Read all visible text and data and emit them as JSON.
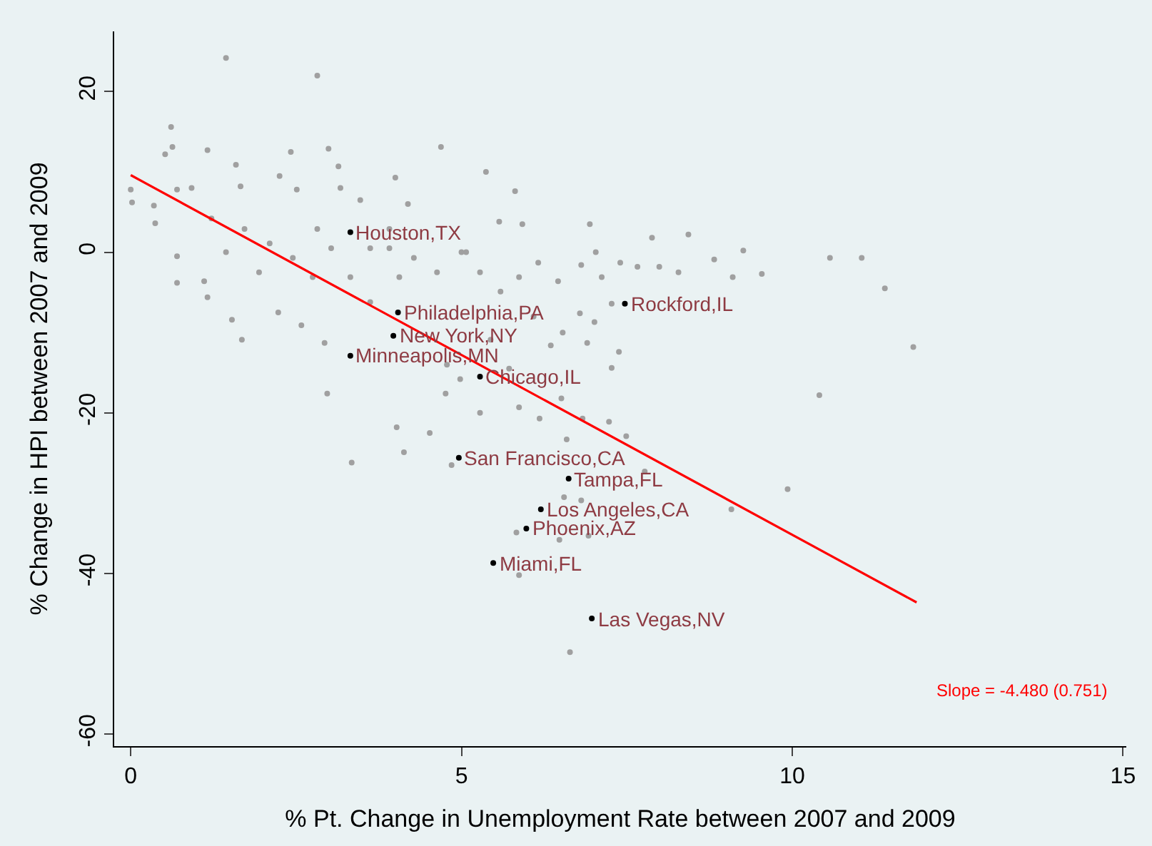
{
  "chart_data": {
    "type": "scatter",
    "xlabel": "% Pt. Change in Unemployment Rate between 2007 and 2009",
    "ylabel": "% Change in HPI between 2007 and 2009",
    "xlim": [
      -0.25,
      15.05
    ],
    "ylim": [
      -61.5,
      27.5
    ],
    "xticks": [
      0,
      5,
      10,
      15
    ],
    "yticks": [
      -60,
      -40,
      -20,
      0,
      20
    ],
    "grid": false,
    "marker": "circle",
    "series": [
      {
        "color": "#a0a0a0",
        "x": [
          1.44,
          2.82,
          0.0,
          0.02,
          0.61,
          0.63,
          0.52,
          1.16,
          1.59,
          1.66,
          2.25,
          2.42,
          2.99,
          3.14,
          3.17,
          4.0,
          4.69,
          2.51,
          0.7,
          0.92,
          0.35,
          0.37,
          0.7,
          0.7,
          1.11,
          1.16,
          1.53,
          1.68,
          2.23,
          2.58,
          2.93,
          2.97,
          4.76,
          4.98,
          1.22,
          1.44,
          1.72,
          2.1,
          1.94,
          2.45,
          2.82,
          2.75,
          3.03,
          3.32,
          3.62,
          3.62,
          3.91,
          4.06,
          4.28,
          4.63,
          4.19,
          3.47,
          3.91,
          5.0,
          4.78,
          5.37,
          5.81,
          5.57,
          5.92,
          6.94,
          7.88,
          8.43,
          9.26,
          9.54,
          9.1,
          8.82,
          8.28,
          7.99,
          7.66,
          7.4,
          7.12,
          7.03,
          6.81,
          6.46,
          6.16,
          5.87,
          5.59,
          5.28,
          5.07,
          7.27,
          7.38,
          7.27,
          6.9,
          7.01,
          6.53,
          6.35,
          6.79,
          6.09,
          10.41,
          10.57,
          11.05,
          11.4,
          11.83,
          6.51,
          5.72,
          5.44,
          4.02,
          4.13,
          3.34,
          4.52,
          4.85,
          5.28,
          5.87,
          6.18,
          6.59,
          6.83,
          7.23,
          7.49,
          7.77,
          6.55,
          6.81,
          5.83,
          6.48,
          6.92,
          5.87,
          6.64,
          9.93,
          9.08
        ],
        "values": [
          24.2,
          22.0,
          7.8,
          6.2,
          15.6,
          13.1,
          12.2,
          12.7,
          10.9,
          8.2,
          9.5,
          12.5,
          12.9,
          10.7,
          8.0,
          9.3,
          13.1,
          7.8,
          7.8,
          8.0,
          5.8,
          3.6,
          -0.5,
          -3.8,
          -3.6,
          -5.6,
          -8.4,
          -10.9,
          -7.5,
          -9.1,
          -11.3,
          -17.6,
          -17.6,
          -15.8,
          4.2,
          0.0,
          2.9,
          1.1,
          -2.5,
          -0.7,
          2.9,
          -3.1,
          0.5,
          -3.1,
          0.5,
          -6.2,
          0.5,
          -3.1,
          -0.7,
          -2.5,
          6.0,
          6.5,
          2.9,
          0.0,
          -14.0,
          10.0,
          7.6,
          3.8,
          3.5,
          3.5,
          1.8,
          2.2,
          0.2,
          -2.7,
          -3.1,
          -0.9,
          -2.5,
          -1.8,
          -1.8,
          -1.3,
          -3.1,
          0.0,
          -1.6,
          -3.6,
          -1.3,
          -3.1,
          -4.9,
          -2.5,
          0.0,
          -6.4,
          -12.4,
          -14.4,
          -11.3,
          -8.7,
          -10.0,
          -11.6,
          -7.6,
          -8.0,
          -17.8,
          -0.7,
          -0.7,
          -4.5,
          -11.8,
          -18.2,
          -14.5,
          -10.9,
          -21.8,
          -24.9,
          -26.2,
          -22.5,
          -26.5,
          -20.0,
          -19.3,
          -20.7,
          -23.3,
          -20.7,
          -21.1,
          -22.9,
          -27.3,
          -30.5,
          -30.9,
          -34.9,
          -35.8,
          -35.3,
          -40.2,
          -49.8,
          -29.5,
          -32.0
        ]
      },
      {
        "color": "#000000",
        "x": [
          3.32,
          4.04,
          3.97,
          3.32,
          7.47,
          5.28,
          4.96,
          6.62,
          6.2,
          5.98,
          5.48,
          6.97
        ],
        "values": [
          2.5,
          -7.5,
          -10.4,
          -12.9,
          -6.4,
          -15.5,
          -25.6,
          -28.2,
          -32.0,
          -34.4,
          -38.7,
          -45.6
        ]
      },
      {
        "type": "line",
        "color": "#ff0000",
        "marker": "none",
        "x": [
          0,
          11.88
        ],
        "values": [
          9.6,
          -43.6
        ]
      }
    ],
    "annotations": [
      {
        "text": "Houston,TX",
        "x": 3.32,
        "y": 2.5
      },
      {
        "text": "Philadelphia,PA",
        "x": 4.04,
        "y": -7.5
      },
      {
        "text": "New York,NY",
        "x": 3.97,
        "y": -10.4
      },
      {
        "text": "Minneapolis,MN",
        "x": 3.32,
        "y": -12.9
      },
      {
        "text": "Rockford,IL",
        "x": 7.47,
        "y": -6.4
      },
      {
        "text": "Chicago,IL",
        "x": 5.28,
        "y": -15.5
      },
      {
        "text": "San Francisco,CA",
        "x": 4.96,
        "y": -25.6
      },
      {
        "text": "Tampa,FL",
        "x": 6.62,
        "y": -28.2
      },
      {
        "text": "Los Angeles,CA",
        "x": 6.2,
        "y": -32.0
      },
      {
        "text": "Phoenix,AZ",
        "x": 5.98,
        "y": -34.4
      },
      {
        "text": "Miami,FL",
        "x": 5.48,
        "y": -38.7
      },
      {
        "text": "Las Vegas,NV",
        "x": 6.97,
        "y": -45.6
      },
      "Slope = -4.480 (0.751)"
    ]
  }
}
